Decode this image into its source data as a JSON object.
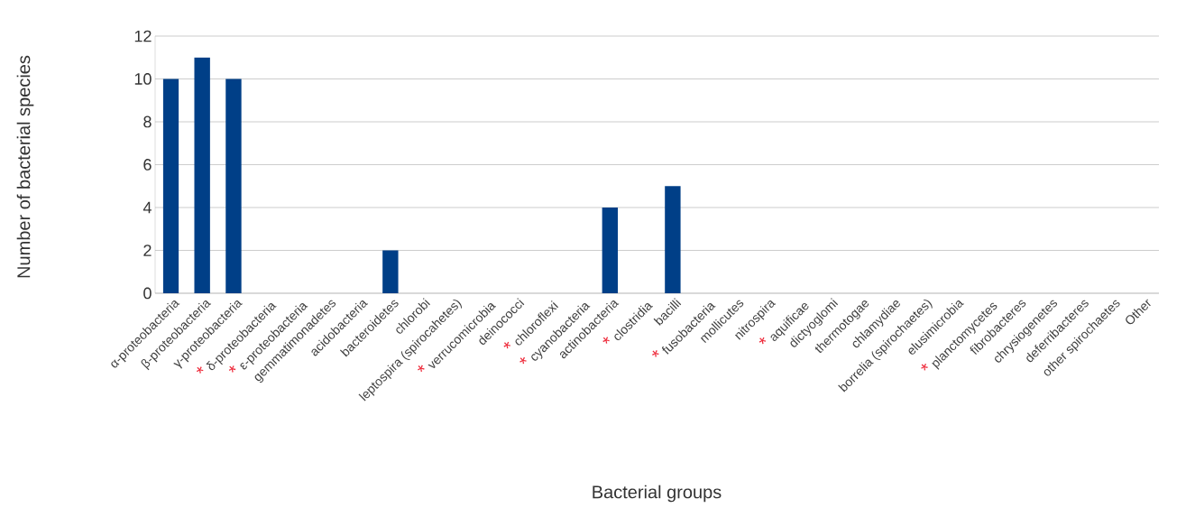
{
  "chart_data": {
    "type": "bar",
    "xlabel": "Bacterial groups",
    "ylabel": "Number of bacterial species",
    "categories": [
      "α-proteobacteria",
      "β-proteobacteria",
      "γ-proteobacteria",
      "δ-proteobacteria",
      "ε-proteobacteria",
      "gemmatimonadetes",
      "acidobacteria",
      "bacteroidetes",
      "chlorobi",
      "leptospira (spirocahetes)",
      "verrucomicrobia",
      "deinococci",
      "chloroflexi",
      "cyanobacteria",
      "actinobacteria",
      "clostridia",
      "bacilli",
      "fusobacteria",
      "mollicutes",
      "nitrospira",
      "aquificae",
      "dictyoglomi",
      "thermotogae",
      "chlamydiae",
      "borrelia (spirochaetes)",
      "elusimicrobia",
      "planctomycetes",
      "fibrobacteres",
      "chrysiogenetes",
      "deferribacteres",
      "other spirochaetes",
      "Other"
    ],
    "values": [
      10,
      11,
      10,
      0,
      0,
      0,
      0,
      2,
      0,
      0,
      0,
      0,
      0,
      0,
      4,
      0,
      5,
      0,
      0,
      0,
      0,
      0,
      0,
      0,
      0,
      0,
      0,
      0,
      0,
      0,
      0,
      0
    ],
    "color": "#003f87",
    "ylim": [
      0,
      12
    ],
    "yticks": [
      0,
      2,
      4,
      6,
      8,
      10,
      12
    ],
    "grid": "y",
    "annotations": [
      "*",
      "*",
      "*",
      "*",
      "*",
      "*",
      "*",
      "*",
      "*"
    ]
  }
}
